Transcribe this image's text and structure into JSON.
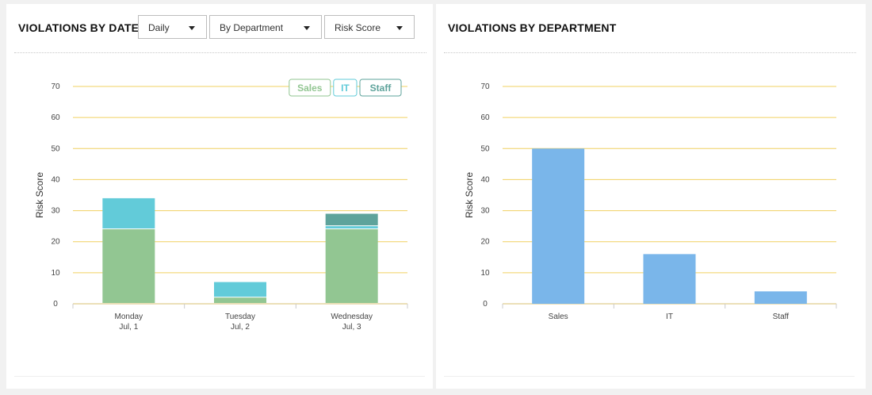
{
  "left_panel": {
    "title": "VIOLATIONS BY DATE",
    "dropdowns": {
      "period": "Daily",
      "group": "By Department",
      "metric": "Risk Score"
    }
  },
  "right_panel": {
    "title": "VIOLATIONS BY DEPARTMENT"
  },
  "colors": {
    "sales": "#92c692",
    "it": "#62cbd9",
    "staff": "#5ea39b",
    "department_bar": "#7ab6ea",
    "grid": "#f0d060",
    "axis": "#d9c070"
  },
  "chart_data": [
    {
      "type": "bar",
      "stacked": true,
      "title": "VIOLATIONS BY DATE",
      "xlabel": "",
      "ylabel": "Risk Score",
      "ylim": [
        0,
        70
      ],
      "yticks": [
        0,
        10,
        20,
        30,
        40,
        50,
        60,
        70
      ],
      "grid": true,
      "legend_position": "top-right",
      "categories": [
        [
          "Monday",
          "Jul, 1"
        ],
        [
          "Tuesday",
          "Jul, 2"
        ],
        [
          "Wednesday",
          "Jul, 3"
        ]
      ],
      "series": [
        {
          "name": "Sales",
          "color": "#92c692",
          "values": [
            24,
            2,
            24
          ]
        },
        {
          "name": "IT",
          "color": "#62cbd9",
          "values": [
            10,
            5,
            1
          ]
        },
        {
          "name": "Staff",
          "color": "#5ea39b",
          "values": [
            0,
            0,
            4
          ]
        }
      ]
    },
    {
      "type": "bar",
      "stacked": false,
      "title": "VIOLATIONS BY DEPARTMENT",
      "xlabel": "",
      "ylabel": "Risk Score",
      "ylim": [
        0,
        70
      ],
      "yticks": [
        0,
        10,
        20,
        30,
        40,
        50,
        60,
        70
      ],
      "grid": true,
      "categories": [
        "Sales",
        "IT",
        "Staff"
      ],
      "series": [
        {
          "color": "#7ab6ea",
          "values": [
            50,
            16,
            4
          ]
        }
      ]
    }
  ]
}
